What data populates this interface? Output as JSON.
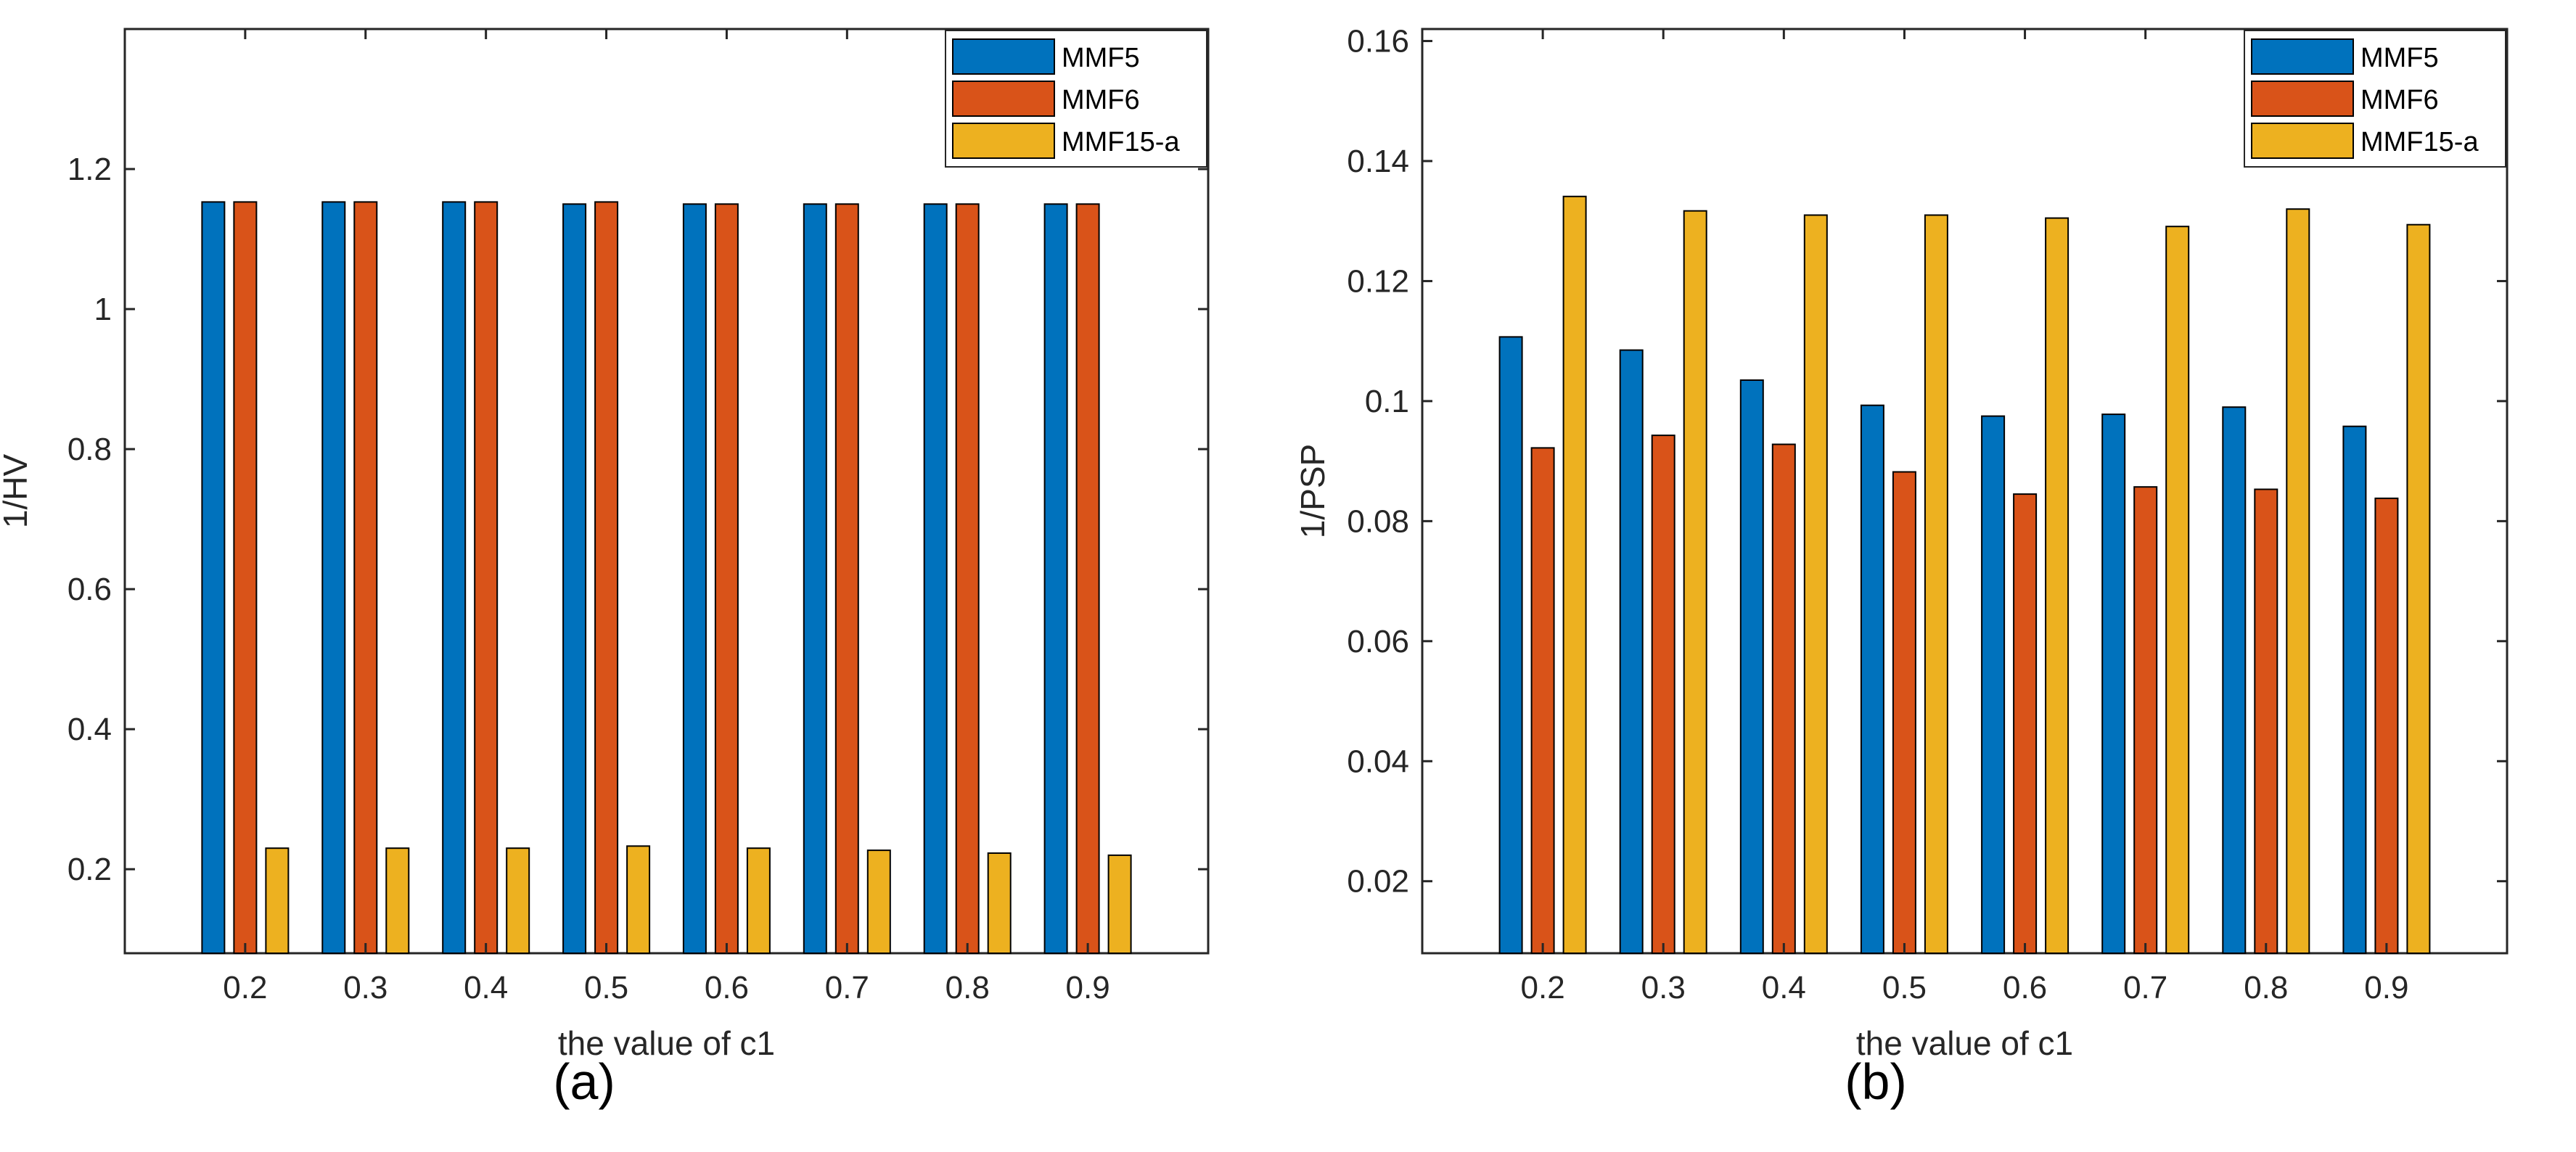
{
  "colors": {
    "MMF5": "#0072BD",
    "MMF6": "#D95319",
    "MMF15-a": "#EDB120",
    "axis": "#262626",
    "frame": "#262626"
  },
  "panel_labels": {
    "a": "(a)",
    "b": "(b)"
  },
  "chart_data": [
    {
      "type": "bar",
      "panel": "a",
      "xlabel": "the value of c1",
      "ylabel": "1/HV",
      "categories": [
        "0.2",
        "0.3",
        "0.4",
        "0.5",
        "0.6",
        "0.7",
        "0.8",
        "0.9"
      ],
      "ylim": [
        0.08,
        1.4
      ],
      "yticks": [
        "0.2",
        "0.4",
        "0.6",
        "0.8",
        "1",
        "1.2"
      ],
      "yticks_values": [
        0.2,
        0.4,
        0.6,
        0.8,
        1.0,
        1.2
      ],
      "legend_position": "top-right",
      "series": [
        {
          "name": "MMF5",
          "values": [
            1.153,
            1.153,
            1.153,
            1.15,
            1.15,
            1.15,
            1.15,
            1.15
          ]
        },
        {
          "name": "MMF6",
          "values": [
            1.153,
            1.153,
            1.153,
            1.153,
            1.15,
            1.15,
            1.15,
            1.15
          ]
        },
        {
          "name": "MMF15-a",
          "values": [
            0.23,
            0.23,
            0.23,
            0.233,
            0.23,
            0.227,
            0.223,
            0.22
          ]
        }
      ]
    },
    {
      "type": "bar",
      "panel": "b",
      "xlabel": "the value of c1",
      "ylabel": "1/PSP",
      "categories": [
        "0.2",
        "0.3",
        "0.4",
        "0.5",
        "0.6",
        "0.7",
        "0.8",
        "0.9"
      ],
      "ylim": [
        0.008,
        0.162
      ],
      "yticks": [
        "0.02",
        "0.04",
        "0.06",
        "0.08",
        "0.1",
        "0.12",
        "0.14",
        "0.16"
      ],
      "yticks_values": [
        0.02,
        0.04,
        0.06,
        0.08,
        0.1,
        0.12,
        0.14,
        0.16
      ],
      "legend_position": "top-right",
      "series": [
        {
          "name": "MMF5",
          "values": [
            0.1107,
            0.1085,
            0.1035,
            0.0993,
            0.0975,
            0.0978,
            0.099,
            0.0958
          ]
        },
        {
          "name": "MMF6",
          "values": [
            0.0922,
            0.0943,
            0.0928,
            0.0882,
            0.0845,
            0.0857,
            0.0853,
            0.0838
          ]
        },
        {
          "name": "MMF15-a",
          "values": [
            0.1341,
            0.1317,
            0.131,
            0.131,
            0.1305,
            0.1291,
            0.132,
            0.1294
          ]
        }
      ]
    }
  ]
}
